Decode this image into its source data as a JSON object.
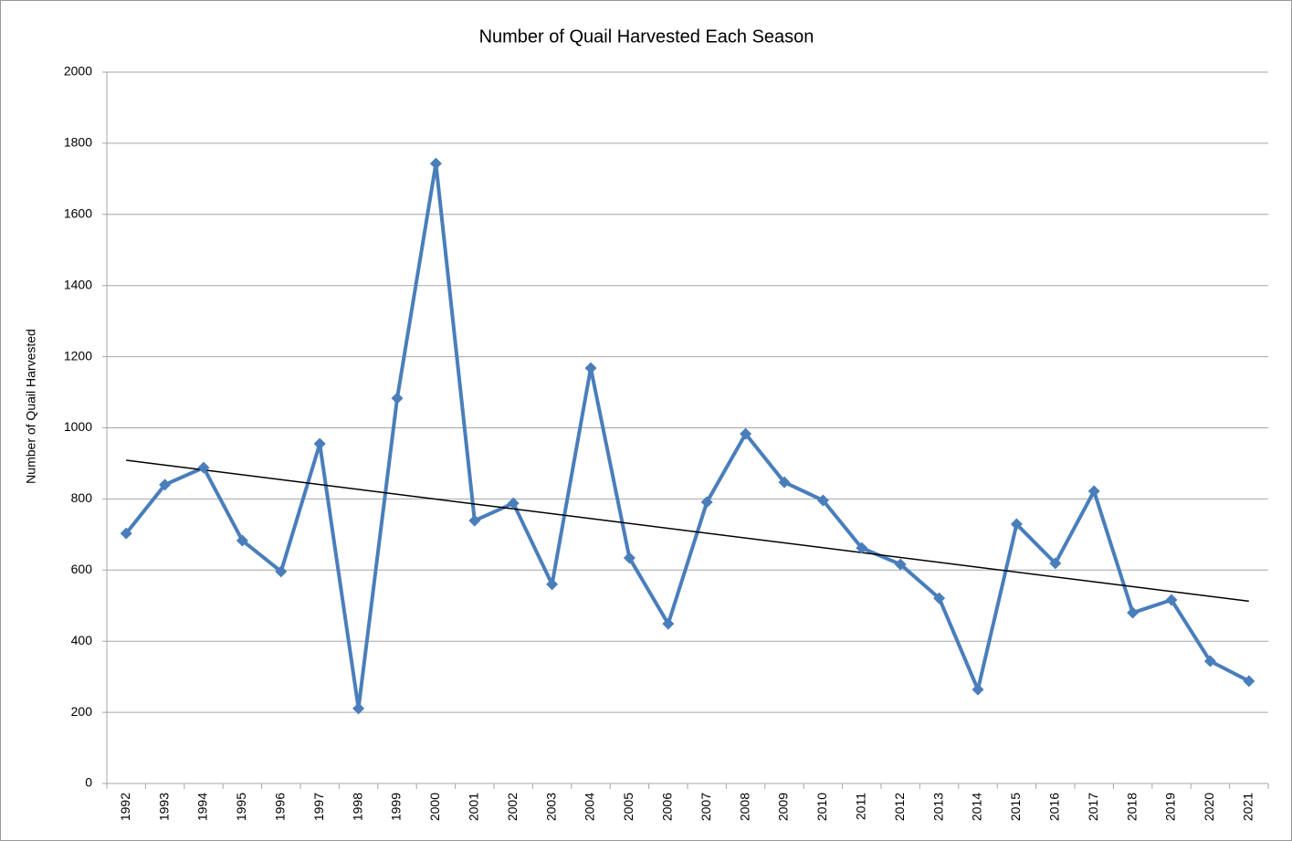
{
  "chart_data": {
    "type": "line",
    "title": "Number of Quail Harvested Each Season",
    "y_label": "Number of Quail Harvested",
    "categories": [
      "1992",
      "1993",
      "1994",
      "1995",
      "1996",
      "1997",
      "1998",
      "1999",
      "2000",
      "2001",
      "2002",
      "2003",
      "2004",
      "2005",
      "2006",
      "2007",
      "2008",
      "2009",
      "2010",
      "2011",
      "2012",
      "2013",
      "2014",
      "2015",
      "2016",
      "2017",
      "2018",
      "2019",
      "2020",
      "2021"
    ],
    "values": [
      703,
      840,
      888,
      683,
      596,
      955,
      211,
      1083,
      1743,
      739,
      788,
      560,
      1168,
      634,
      449,
      791,
      983,
      847,
      796,
      662,
      616,
      521,
      264,
      729,
      619,
      822,
      480,
      516,
      344,
      288
    ],
    "color": "#4a7ebb",
    "trendline": true,
    "ylim": [
      0,
      2000
    ],
    "yticks": [
      0,
      200,
      400,
      600,
      800,
      1000,
      1200,
      1400,
      1600,
      1800,
      2000
    ],
    "grid": true
  }
}
